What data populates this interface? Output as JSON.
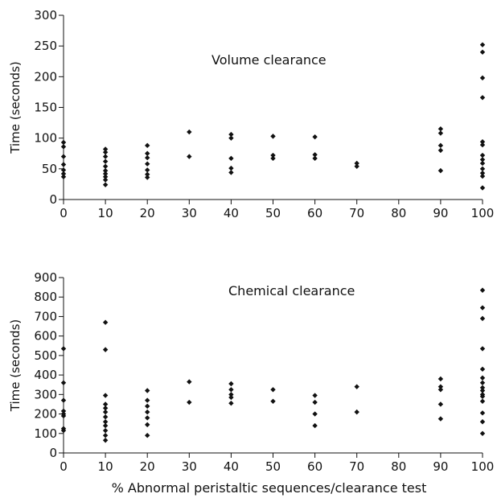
{
  "chart_data": [
    {
      "type": "scatter",
      "annotation": "Volume clearance",
      "ylabel": "Time (seconds)",
      "xlabel": "",
      "xlim": [
        0,
        100
      ],
      "ylim": [
        0,
        300
      ],
      "xticks": [
        0,
        10,
        20,
        30,
        40,
        50,
        60,
        70,
        80,
        90,
        100
      ],
      "yticks": [
        0,
        50,
        100,
        150,
        200,
        250,
        300
      ],
      "series": [
        {
          "x": [
            0,
            0,
            0,
            0,
            0,
            0,
            0,
            10,
            10,
            10,
            10,
            10,
            10,
            10,
            10,
            10,
            10,
            20,
            20,
            20,
            20,
            20,
            20,
            20,
            30,
            30,
            40,
            40,
            40,
            40,
            40,
            50,
            50,
            50,
            60,
            60,
            60,
            70,
            70,
            90,
            90,
            90,
            90,
            90,
            100,
            100,
            100,
            100,
            100,
            100,
            100,
            100,
            100,
            100,
            100,
            100,
            100
          ],
          "y": [
            93,
            86,
            70,
            57,
            48,
            42,
            37,
            82,
            77,
            70,
            62,
            54,
            47,
            42,
            37,
            32,
            24,
            88,
            75,
            68,
            58,
            48,
            41,
            36,
            110,
            70,
            106,
            100,
            67,
            51,
            44,
            103,
            72,
            67,
            102,
            73,
            67,
            59,
            54,
            115,
            108,
            88,
            80,
            47,
            252,
            240,
            198,
            166,
            94,
            89,
            72,
            65,
            59,
            50,
            43,
            38,
            19
          ]
        }
      ]
    },
    {
      "type": "scatter",
      "annotation": "Chemical clearance",
      "ylabel": "Time (seconds)",
      "xlabel": "% Abnormal peristaltic sequences/clearance test",
      "xlim": [
        0,
        100
      ],
      "ylim": [
        0,
        900
      ],
      "xticks": [
        0,
        10,
        20,
        30,
        40,
        50,
        60,
        70,
        80,
        90,
        100
      ],
      "yticks": [
        0,
        100,
        200,
        300,
        400,
        500,
        600,
        700,
        800,
        900
      ],
      "series": [
        {
          "x": [
            0,
            0,
            0,
            0,
            0,
            0,
            0,
            0,
            10,
            10,
            10,
            10,
            10,
            10,
            10,
            10,
            10,
            10,
            10,
            10,
            20,
            20,
            20,
            20,
            20,
            20,
            20,
            30,
            30,
            40,
            40,
            40,
            40,
            40,
            50,
            50,
            60,
            60,
            60,
            60,
            70,
            70,
            90,
            90,
            90,
            90,
            90,
            100,
            100,
            100,
            100,
            100,
            100,
            100,
            100,
            100,
            100,
            100,
            100,
            100,
            100,
            100
          ],
          "y": [
            535,
            360,
            270,
            215,
            200,
            190,
            125,
            115,
            670,
            530,
            295,
            250,
            230,
            210,
            185,
            160,
            140,
            115,
            90,
            65,
            320,
            270,
            240,
            210,
            180,
            145,
            90,
            365,
            260,
            355,
            325,
            300,
            285,
            255,
            325,
            265,
            295,
            260,
            200,
            140,
            340,
            210,
            380,
            340,
            325,
            250,
            175,
            835,
            745,
            690,
            535,
            430,
            385,
            360,
            335,
            320,
            300,
            290,
            265,
            205,
            160,
            100
          ]
        }
      ]
    }
  ]
}
